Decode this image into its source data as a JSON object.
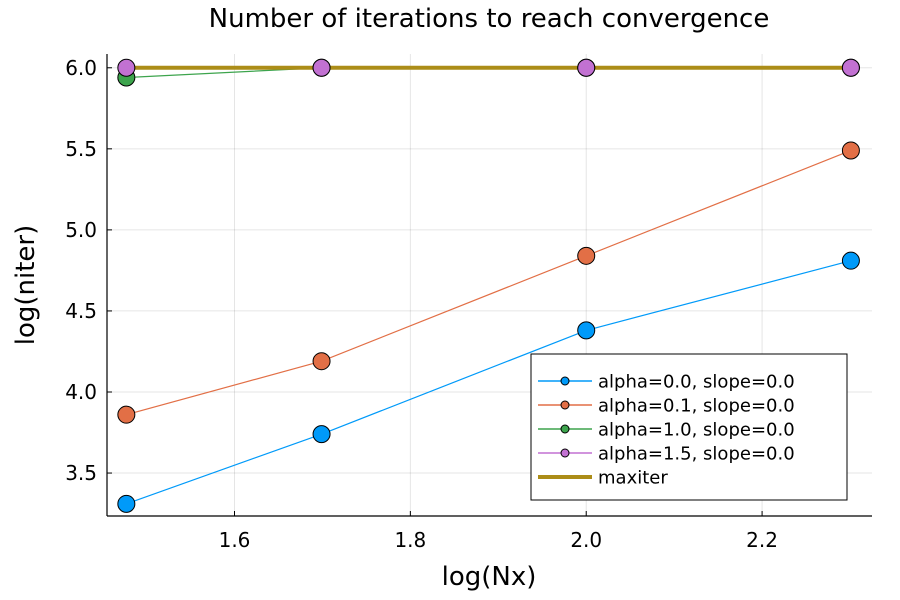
{
  "chart_data": {
    "type": "line",
    "title": "Number of iterations to reach convergence",
    "xlabel": "log(Nx)",
    "ylabel": "log(niter)",
    "xlim": [
      1.455,
      2.325
    ],
    "ylim": [
      3.235,
      6.085
    ],
    "x_ticks": [
      1.6,
      1.8,
      2.0,
      2.2
    ],
    "x_tick_labels": [
      "1.6",
      "1.8",
      "2.0",
      "2.2"
    ],
    "y_ticks": [
      3.5,
      4.0,
      4.5,
      5.0,
      5.5,
      6.0
    ],
    "y_tick_labels": [
      "3.5",
      "4.0",
      "4.5",
      "5.0",
      "5.5",
      "6.0"
    ],
    "grid": true,
    "legend_position": "bottom-right",
    "x": [
      1.477,
      1.699,
      2.0,
      2.301
    ],
    "series": [
      {
        "name": "alpha=0.0, slope=0.0",
        "color": "#009af9",
        "values": [
          3.31,
          3.74,
          4.38,
          4.81
        ],
        "markers": true
      },
      {
        "name": "alpha=0.1, slope=0.0",
        "color": "#e26f46",
        "values": [
          3.86,
          4.19,
          4.84,
          5.49
        ],
        "markers": true
      },
      {
        "name": "alpha=1.0, slope=0.0",
        "color": "#3da44d",
        "values": [
          5.94,
          6.0,
          6.0,
          6.0
        ],
        "markers": true
      },
      {
        "name": "alpha=1.5, slope=0.0",
        "color": "#c271d2",
        "values": [
          6.0,
          6.0,
          6.0,
          6.0
        ],
        "markers": true
      },
      {
        "name": "maxiter",
        "color": "#ac8d18",
        "values": [
          6.0,
          6.0,
          6.0,
          6.0
        ],
        "markers": false,
        "thick": true
      }
    ]
  }
}
